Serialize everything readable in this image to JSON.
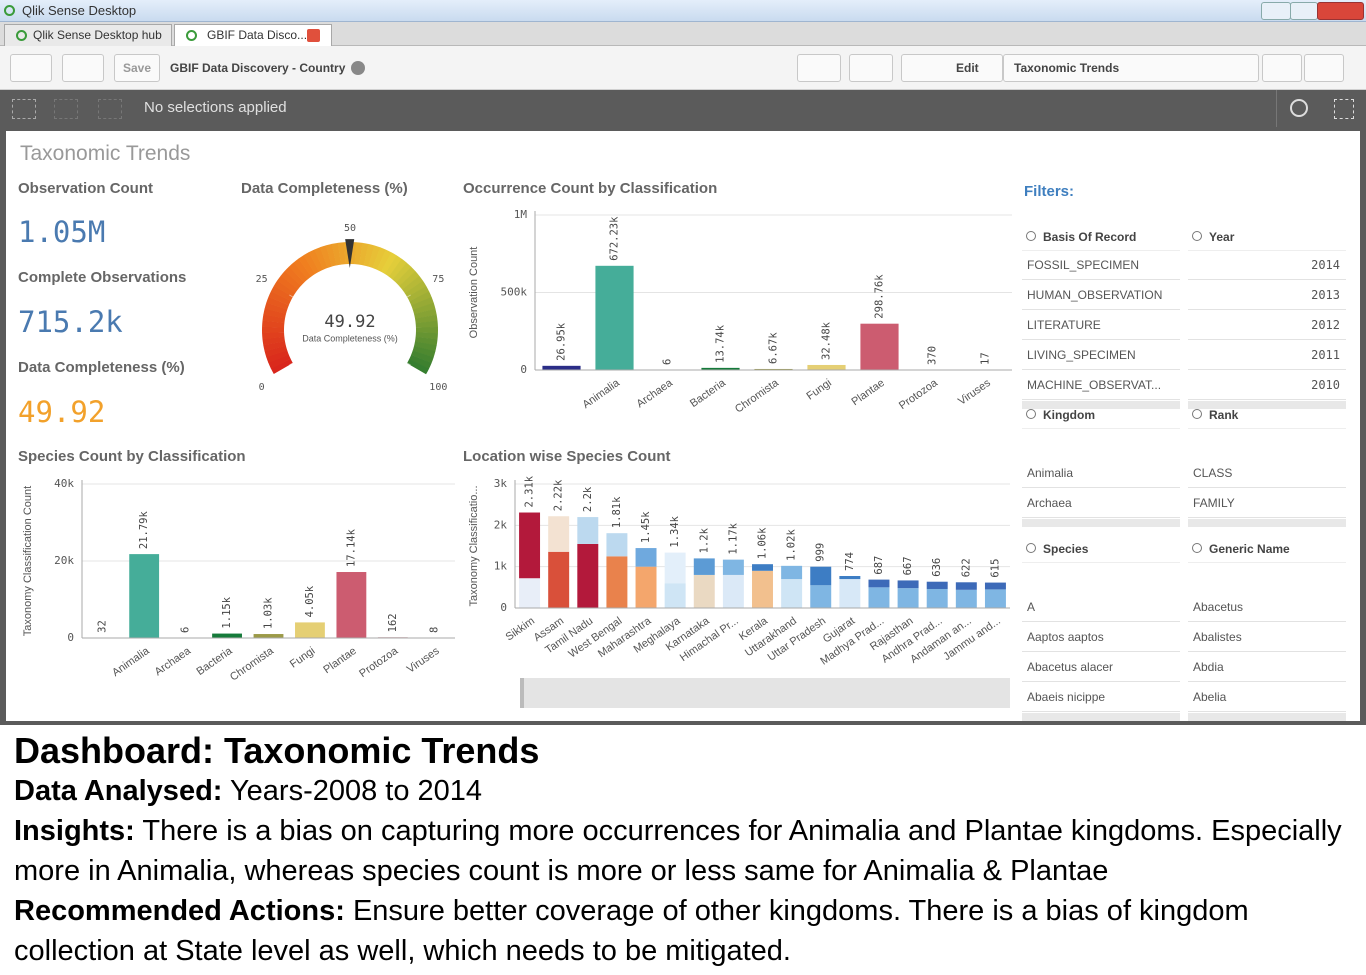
{
  "window": {
    "title": "Qlik Sense Desktop",
    "tabs": [
      "Qlik Sense Desktop hub",
      "GBIF Data Disco..."
    ]
  },
  "toolbar": {
    "save": "Save",
    "app": "GBIF Data Discovery - Country",
    "edit": "Edit",
    "sheet": "Taxonomic Trends"
  },
  "selections": "No selections applied",
  "sheet_title": "Taxonomic Trends",
  "kpis": [
    {
      "label": "Observation Count",
      "value": "1.05M"
    },
    {
      "label": "Complete Observations",
      "value": "715.2k"
    },
    {
      "label": "Data Completeness (%)",
      "value": "49.92"
    }
  ],
  "chart_data": [
    {
      "type": "gauge",
      "title": "Data Completeness (%)",
      "value": 49.92,
      "label": "Data Completeness (%)",
      "lim": [
        0,
        100
      ],
      "ticks": [
        0,
        25,
        50,
        75,
        100
      ]
    },
    {
      "type": "bar",
      "title": "Occurrence Count by Classification",
      "y_label": "Observation Count",
      "categories": [
        null,
        "Animalia",
        "Archaea",
        "Bacteria",
        "Chromista",
        "Fungi",
        "Plantae",
        "Protozoa",
        "Viruses"
      ],
      "values": [
        26950,
        672230,
        6,
        13740,
        6670,
        32480,
        298760,
        370,
        17
      ],
      "value_labels": [
        "26.95k",
        "672.23k",
        "6",
        "13.74k",
        "6.67k",
        "32.48k",
        "298.76k",
        "370",
        "17"
      ],
      "colors": [
        "#2b2d87",
        "#45ad99",
        "#8fbf5a",
        "#157a3a",
        "#9c9a48",
        "#e5cf74",
        "#cc5c70",
        "#8a1f2e",
        "#c9a0a8"
      ],
      "ylim": [
        0,
        1000000
      ],
      "yticks": [
        0,
        {
          "value": 500000,
          "label": "500k"
        },
        {
          "value": 1000000,
          "label": "1M"
        }
      ],
      "grid": true
    },
    {
      "type": "bar",
      "title": "Species Count by Classification",
      "y_label": "Taxonomy Classification Count",
      "categories": [
        null,
        "Animalia",
        "Archaea",
        "Bacteria",
        "Chromista",
        "Fungi",
        "Plantae",
        "Protozoa",
        "Viruses"
      ],
      "values": [
        32,
        21790,
        6,
        1150,
        1030,
        4050,
        17140,
        162,
        8
      ],
      "value_labels": [
        "32",
        "21.79k",
        "6",
        "1.15k",
        "1.03k",
        "4.05k",
        "17.14k",
        "162",
        "8"
      ],
      "colors": [
        "#2b2d87",
        "#45ad99",
        "#8fbf5a",
        "#157a3a",
        "#9c9a48",
        "#e5cf74",
        "#cc5c70",
        "#8a1f2e",
        "#c9a0a8"
      ],
      "ylim": [
        0,
        40000
      ],
      "yticks": [
        0,
        {
          "value": 20000,
          "label": "20k"
        },
        {
          "value": 40000,
          "label": "40k"
        }
      ],
      "grid": true
    },
    {
      "type": "stacked_bar",
      "title": "Location wise Species Count",
      "y_label": "Taxonomy Classificatio...",
      "categories": [
        "Sikkim",
        "Assam",
        "Tamil Nadu",
        "West Bengal",
        "Maharashtra",
        "Meghalaya",
        "Karnataka",
        "Himachal Pr...",
        "Kerala",
        "Uttarakhand",
        "Uttar Pradesh",
        "Gujarat",
        "Madhya Prad...",
        "Rajasthan",
        "Andhra Prad...",
        "Andaman an...",
        "Jammu and..."
      ],
      "series": [
        {
          "values": [
            720,
            1360,
            1550,
            1250,
            1000,
            600,
            800,
            800,
            900,
            700,
            550,
            700,
            500,
            480,
            460,
            440,
            450
          ],
          "colors": [
            "#e8eef8",
            "#d9503a",
            "#b3193b",
            "#e9824c",
            "#f4a66c",
            "#cfe5f5",
            "#ead9c2",
            "#dbe9f7",
            "#f2c08e",
            "#cfe5f5",
            "#7fb6e3",
            "#d7e8f7",
            "#7fb6e3",
            "#7fb6e3",
            "#7fb6e3",
            "#7fb6e3",
            "#7fb6e3"
          ]
        },
        {
          "values": [
            1590,
            860,
            650,
            560,
            450,
            740,
            400,
            370,
            160,
            320,
            449,
            74,
            187,
            187,
            176,
            182,
            165
          ],
          "colors": [
            "#b3193b",
            "#f3e2d2",
            "#bcd9ef",
            "#bcd9ef",
            "#6fa9de",
            "#e3effa",
            "#5c9bd5",
            "#7fb6e3",
            "#3d7dc4",
            "#7fb6e3",
            "#3d7dc4",
            "#3d7dc4",
            "#3d6ab8",
            "#3d6ab8",
            "#3d6ab8",
            "#3d6ab8",
            "#3d6ab8"
          ]
        }
      ],
      "total_labels": [
        "2.31k",
        "2.22k",
        "2.2k",
        "1.81k",
        "1.45k",
        "1.34k",
        "1.2k",
        "1.17k",
        "1.06k",
        "1.02k",
        "999",
        "774",
        "687",
        "667",
        "636",
        "622",
        "615"
      ],
      "ylim": [
        0,
        3000
      ],
      "yticks": [
        0,
        {
          "value": 1000,
          "label": "1k"
        },
        {
          "value": 2000,
          "label": "2k"
        },
        {
          "value": 3000,
          "label": "3k"
        }
      ],
      "grid": true
    }
  ],
  "filters": {
    "title": "Filters:",
    "boxes": [
      {
        "title": "Basis Of Record",
        "items": [
          "FOSSIL_SPECIMEN",
          "HUMAN_OBSERVATION",
          "LITERATURE",
          "LIVING_SPECIMEN",
          "MACHINE_OBSERVAT..."
        ]
      },
      {
        "title": "Year",
        "items": [
          2014,
          2013,
          2012,
          2011,
          2010
        ]
      },
      {
        "title": "Kingdom",
        "items": [
          "Animalia",
          "Archaea"
        ]
      },
      {
        "title": "Rank",
        "items": [
          "CLASS",
          "FAMILY"
        ]
      },
      {
        "title": "Species",
        "items": [
          "A",
          "Aaptos aaptos",
          "Abacetus alacer",
          "Abaeis nicippe"
        ]
      },
      {
        "title": "Generic Name",
        "items": [
          "Abacetus",
          "Abalistes",
          "Abdia",
          "Abelia"
        ]
      }
    ]
  },
  "caption": {
    "heading": "Dashboard: Taxonomic Trends",
    "paragraphs": [
      {
        "label": "Data Analysed:",
        "text": "Years-2008 to 2014"
      },
      {
        "label": "Insights:",
        "text": "There is a bias on capturing more occurrences for Animalia and Plantae kingdoms. Especially more in Animalia, whereas species count is more or less same for Animalia & Plantae"
      },
      {
        "label": "Recommended Actions:",
        "text": "Ensure better coverage of other kingdoms. There is a bias of kingdom collection at State level as well, which needs to be mitigated."
      }
    ]
  }
}
